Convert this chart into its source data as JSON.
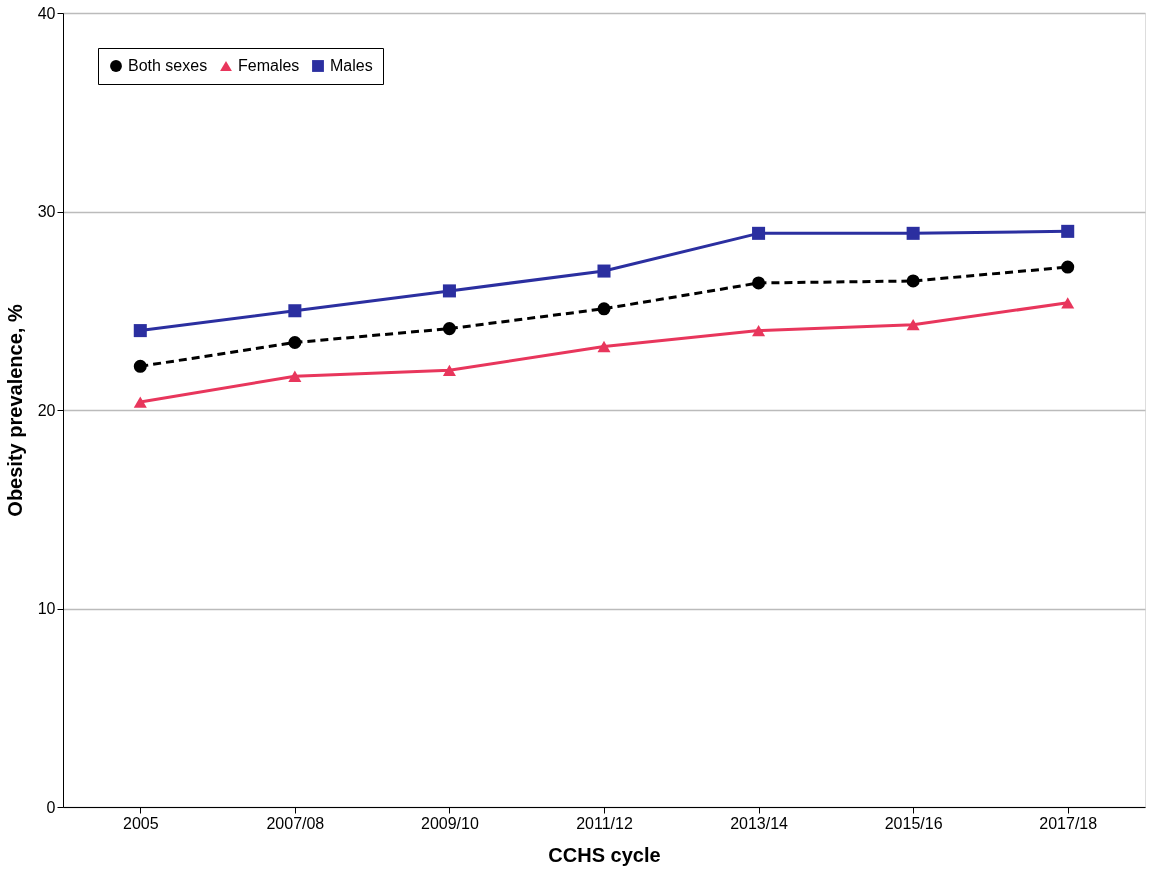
{
  "chart_data": {
    "type": "line",
    "xlabel": "CCHS cycle",
    "ylabel": "Obesity prevalence, %",
    "categories": [
      "2005",
      "2007/08",
      "2009/10",
      "2011/12",
      "2013/14",
      "2015/16",
      "2017/18"
    ],
    "series": [
      {
        "name": "Both sexes",
        "color": "#000000",
        "marker": "circle",
        "line_style": "dashed",
        "values": [
          22.2,
          23.4,
          24.1,
          25.1,
          26.4,
          26.5,
          27.2
        ]
      },
      {
        "name": "Females",
        "color": "#e8365c",
        "marker": "triangle",
        "line_style": "solid",
        "values": [
          20.4,
          21.7,
          22.0,
          23.2,
          24.0,
          24.3,
          25.4
        ]
      },
      {
        "name": "Males",
        "color": "#2b2fa0",
        "marker": "square",
        "line_style": "solid",
        "values": [
          24.0,
          25.0,
          26.0,
          27.0,
          28.9,
          28.9,
          29.0
        ]
      }
    ],
    "ylim": [
      0,
      40
    ],
    "yticks": [
      0,
      10,
      20,
      30,
      40
    ],
    "grid": "y",
    "legend": "top left"
  }
}
